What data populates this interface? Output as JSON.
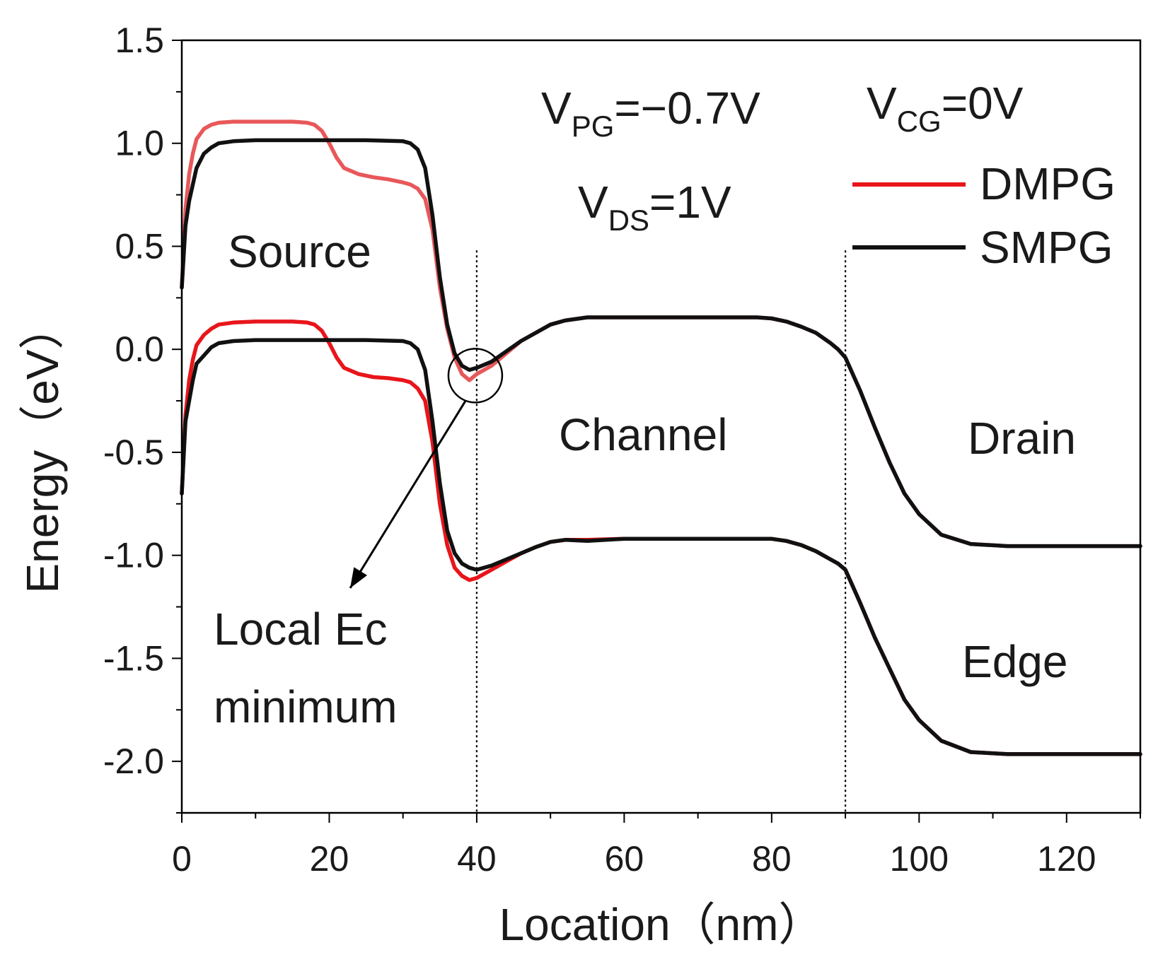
{
  "chart_data": {
    "type": "line",
    "xlabel": "Location（nm）",
    "ylabel": "Energy（eV）",
    "xlim": [
      0,
      130
    ],
    "ylim": [
      -2.25,
      1.5
    ],
    "xticks": [
      0,
      20,
      40,
      60,
      80,
      100,
      120
    ],
    "xtick_labels": [
      "0",
      "20",
      "40",
      "60",
      "80",
      "100",
      "120"
    ],
    "yticks": [
      1.5,
      1.0,
      0.5,
      0.0,
      -0.5,
      -1.0,
      -1.5,
      -2.0
    ],
    "ytick_labels": [
      "1.5",
      "1.0",
      "0.5",
      "0.0",
      "-0.5",
      "-1.0",
      "-1.5",
      "-2.0"
    ],
    "region_boundaries_nm": [
      40,
      90
    ],
    "conditions": {
      "vpg": {
        "main": "V",
        "sub": "PG",
        "rest": "=−0.7V"
      },
      "vds": {
        "main": "V",
        "sub": "DS",
        "rest": "=1V"
      },
      "vcg": {
        "main": "V",
        "sub": "CG",
        "rest": "=0V"
      }
    },
    "region_labels": {
      "source": "Source",
      "channel": "Channel",
      "drain": "Drain",
      "edge": "Edge"
    },
    "annotation": {
      "line1": "Local Ec",
      "line2": "minimum",
      "target_x": 40,
      "target_y": -0.1
    },
    "legend": {
      "position": "top-right"
    },
    "series": [
      {
        "name": "DMPG",
        "band": "Ec",
        "color": "#e8585a",
        "x": [
          0,
          0.5,
          1,
          1.5,
          2,
          3,
          4,
          5,
          7,
          10,
          15,
          17,
          18,
          19,
          20,
          21,
          22,
          24,
          26,
          28,
          30,
          31,
          32,
          33,
          34,
          35,
          36,
          37,
          38,
          39,
          40,
          42,
          44,
          46,
          48,
          50,
          52,
          55,
          60,
          70,
          78,
          80,
          82,
          84,
          86,
          88,
          89,
          90,
          91,
          92,
          94,
          96,
          98,
          100,
          103,
          107,
          112,
          120,
          130
        ],
        "y": [
          0.3,
          0.68,
          0.85,
          0.95,
          1.02,
          1.07,
          1.09,
          1.1,
          1.105,
          1.105,
          1.105,
          1.1,
          1.09,
          1.06,
          1.0,
          0.93,
          0.88,
          0.85,
          0.835,
          0.825,
          0.81,
          0.8,
          0.78,
          0.73,
          0.58,
          0.3,
          0.1,
          -0.04,
          -0.12,
          -0.15,
          -0.12,
          -0.08,
          -0.02,
          0.04,
          0.08,
          0.12,
          0.14,
          0.155,
          0.155,
          0.155,
          0.155,
          0.15,
          0.135,
          0.11,
          0.08,
          0.03,
          0.0,
          -0.04,
          -0.12,
          -0.2,
          -0.38,
          -0.55,
          -0.7,
          -0.8,
          -0.9,
          -0.945,
          -0.955,
          -0.955,
          -0.955
        ]
      },
      {
        "name": "DMPG",
        "band": "Ev",
        "color": "#e8151b",
        "x": [
          0,
          0.5,
          1,
          1.5,
          2,
          3,
          4,
          5,
          7,
          10,
          15,
          17,
          18,
          19,
          20,
          21,
          22,
          24,
          26,
          28,
          30,
          31,
          32,
          33,
          34,
          35,
          36,
          37,
          38,
          39,
          40,
          42,
          44,
          46,
          48,
          50,
          52,
          55,
          60,
          70,
          78,
          80,
          82,
          84,
          86,
          88,
          89,
          90,
          91,
          92,
          94,
          96,
          98,
          100,
          103,
          107,
          112,
          120,
          130
        ],
        "y": [
          -0.7,
          -0.32,
          -0.15,
          -0.05,
          0.02,
          0.07,
          0.1,
          0.12,
          0.13,
          0.135,
          0.135,
          0.13,
          0.12,
          0.09,
          0.03,
          -0.04,
          -0.09,
          -0.12,
          -0.135,
          -0.14,
          -0.15,
          -0.16,
          -0.19,
          -0.25,
          -0.45,
          -0.75,
          -0.95,
          -1.06,
          -1.1,
          -1.12,
          -1.11,
          -1.07,
          -1.03,
          -0.99,
          -0.96,
          -0.935,
          -0.925,
          -0.925,
          -0.92,
          -0.92,
          -0.92,
          -0.92,
          -0.93,
          -0.95,
          -0.98,
          -1.02,
          -1.04,
          -1.07,
          -1.15,
          -1.23,
          -1.4,
          -1.55,
          -1.7,
          -1.8,
          -1.9,
          -1.955,
          -1.965,
          -1.965,
          -1.965
        ]
      },
      {
        "name": "SMPG",
        "band": "Ec",
        "color": "#111111",
        "x": [
          0,
          0.5,
          1,
          1.5,
          2,
          3,
          4,
          5,
          7,
          10,
          15,
          20,
          25,
          30,
          31,
          32,
          33,
          34,
          35,
          36,
          37,
          38,
          39,
          40,
          42,
          44,
          46,
          48,
          50,
          52,
          55,
          60,
          70,
          78,
          80,
          82,
          84,
          86,
          88,
          89,
          90,
          91,
          92,
          94,
          96,
          98,
          100,
          103,
          107,
          112,
          120,
          130
        ],
        "y": [
          0.3,
          0.6,
          0.72,
          0.8,
          0.88,
          0.95,
          0.98,
          1.0,
          1.01,
          1.015,
          1.015,
          1.015,
          1.015,
          1.01,
          1.0,
          0.97,
          0.88,
          0.65,
          0.35,
          0.12,
          -0.02,
          -0.08,
          -0.1,
          -0.09,
          -0.06,
          -0.01,
          0.04,
          0.08,
          0.12,
          0.14,
          0.155,
          0.155,
          0.155,
          0.155,
          0.15,
          0.135,
          0.11,
          0.08,
          0.03,
          0.0,
          -0.04,
          -0.12,
          -0.2,
          -0.38,
          -0.55,
          -0.7,
          -0.8,
          -0.9,
          -0.945,
          -0.955,
          -0.955,
          -0.955
        ]
      },
      {
        "name": "SMPG",
        "band": "Ev",
        "color": "#111111",
        "x": [
          0,
          0.5,
          1,
          1.5,
          2,
          3,
          4,
          5,
          7,
          10,
          15,
          20,
          25,
          30,
          31,
          32,
          33,
          34,
          35,
          36,
          37,
          38,
          39,
          40,
          42,
          44,
          46,
          48,
          50,
          52,
          55,
          60,
          70,
          78,
          80,
          82,
          84,
          86,
          88,
          89,
          90,
          91,
          92,
          94,
          96,
          98,
          100,
          103,
          107,
          112,
          120,
          130
        ],
        "y": [
          -0.7,
          -0.35,
          -0.25,
          -0.15,
          -0.07,
          -0.03,
          0.01,
          0.03,
          0.04,
          0.045,
          0.045,
          0.045,
          0.045,
          0.04,
          0.03,
          0.0,
          -0.1,
          -0.35,
          -0.65,
          -0.88,
          -0.99,
          -1.04,
          -1.06,
          -1.07,
          -1.05,
          -1.02,
          -0.99,
          -0.96,
          -0.935,
          -0.925,
          -0.93,
          -0.92,
          -0.92,
          -0.92,
          -0.92,
          -0.93,
          -0.95,
          -0.98,
          -1.02,
          -1.04,
          -1.07,
          -1.15,
          -1.23,
          -1.4,
          -1.55,
          -1.7,
          -1.8,
          -1.9,
          -1.955,
          -1.965,
          -1.965,
          -1.965
        ]
      }
    ]
  }
}
